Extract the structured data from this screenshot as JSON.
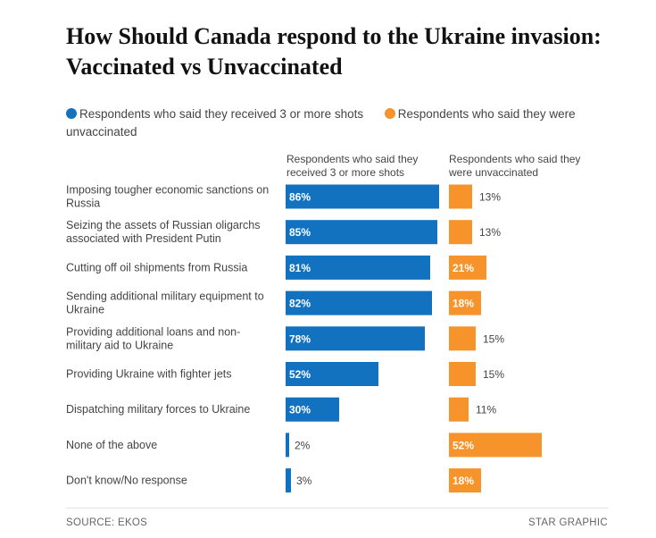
{
  "colors": {
    "vaccinated": "#1372c0",
    "unvaccinated": "#f7932b",
    "label_text": "#444444"
  },
  "chart_data": {
    "type": "bar",
    "title": "How Should Canada respond to the Ukraine invasion: Vaccinated vs Unvaccinated",
    "legend_position": "top",
    "categories": [
      "Imposing tougher economic sanctions on Russia",
      "Seizing the assets of Russian oligarchs associated with President Putin",
      "Cutting off oil shipments from Russia",
      "Sending additional military equipment to Ukraine",
      "Providing additional loans and non-military aid to Ukraine",
      "Providing Ukraine with fighter jets",
      "Dispatching military forces to Ukraine",
      "None of the above",
      "Don't know/No response"
    ],
    "category_lines": [
      [
        "Imposing tougher economic sanctions on",
        "Russia"
      ],
      [
        "Seizing the assets of Russian oligarchs",
        "associated with President Putin"
      ],
      [
        "Cutting off oil shipments from Russia"
      ],
      [
        "Sending additional military equipment to",
        "Ukraine"
      ],
      [
        "Providing additional loans and non-",
        "military aid to Ukraine"
      ],
      [
        "Providing Ukraine with fighter jets"
      ],
      [
        "Dispatching military forces to Ukraine"
      ],
      [
        "None of the above"
      ],
      [
        "Don't know/No response"
      ]
    ],
    "series": [
      {
        "name": "Respondents who said they received 3 or more shots",
        "values": [
          86,
          85,
          81,
          82,
          78,
          52,
          30,
          2,
          3
        ],
        "labels": [
          "86%",
          "85%",
          "81%",
          "82%",
          "78%",
          "52%",
          "30%",
          "2%",
          "3%"
        ]
      },
      {
        "name": "Respondents who said they were unvaccinated",
        "values": [
          13,
          13,
          21,
          18,
          15,
          15,
          11,
          52,
          18
        ],
        "labels": [
          "13%",
          "13%",
          "21%",
          "18%",
          "15%",
          "15%",
          "11%",
          "52%",
          "18%"
        ]
      }
    ],
    "column_headers": [
      "Respondents who said they received 3 or more shots",
      "Respondents who said they were unvaccinated"
    ]
  },
  "legend": {
    "vaccinated": "Respondents who said they received 3 or more shots",
    "unvaccinated": "Respondents who said they were unvaccinated"
  },
  "column_headers": {
    "vaccinated": "Respondents who said they received 3 or more shots",
    "unvaccinated": "Respondents who said they were unvaccinated"
  },
  "footer": {
    "source": "SOURCE: EKOS",
    "credit": "STAR GRAPHIC"
  }
}
